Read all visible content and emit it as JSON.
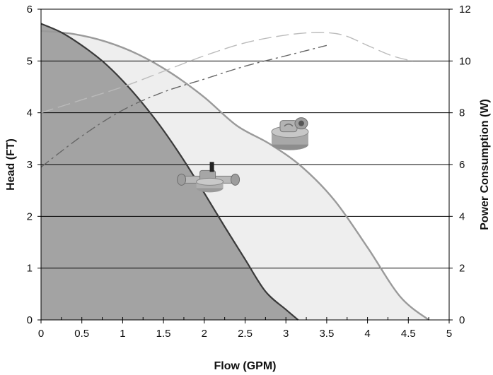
{
  "chart_data": {
    "type": "area",
    "xlabel": "Flow (GPM)",
    "ylabel": "Head (FT)",
    "y2label": "Power Consumption (W)",
    "xlim": [
      0,
      5
    ],
    "ylim": [
      0,
      6
    ],
    "y2lim": [
      0,
      12
    ],
    "x_ticks": [
      "0",
      "0.5",
      "1",
      "1.5",
      "2",
      "2.5",
      "3",
      "3.5",
      "4",
      "4.5",
      "5"
    ],
    "y_ticks": [
      "0",
      "1",
      "2",
      "3",
      "4",
      "5",
      "6"
    ],
    "y2_ticks": [
      "0",
      "2",
      "4",
      "6",
      "8",
      "10",
      "12"
    ],
    "grid": "horizontal",
    "legend": "none",
    "series": [
      {
        "axis": "left",
        "style": "filled-solid",
        "color": "#a9a9a9",
        "fill": "#a3a3a3",
        "x": [
          0,
          0.25,
          0.5,
          0.75,
          1.0,
          1.25,
          1.5,
          1.75,
          2.0,
          2.25,
          2.5,
          2.75,
          3.0,
          3.15
        ],
        "y": [
          5.72,
          5.55,
          5.3,
          5.0,
          4.62,
          4.17,
          3.66,
          3.08,
          2.45,
          1.8,
          1.17,
          0.55,
          0.2,
          0.0
        ]
      },
      {
        "axis": "left",
        "style": "filled-solid",
        "color": "#a9a9a9",
        "fill": "#eeeeee",
        "x": [
          0,
          0.4,
          0.8,
          1.2,
          1.6,
          2.0,
          2.4,
          2.8,
          3.2,
          3.6,
          4.0,
          4.4,
          4.75
        ],
        "y": [
          5.58,
          5.52,
          5.37,
          5.12,
          4.76,
          4.3,
          3.75,
          3.4,
          2.95,
          2.3,
          1.4,
          0.45,
          0.0
        ]
      },
      {
        "axis": "right",
        "style": "dashed",
        "color": "#bbbbbb",
        "x": [
          0,
          0.5,
          1.0,
          1.5,
          2.0,
          2.5,
          3.0,
          3.4,
          3.7,
          4.0,
          4.3,
          4.55
        ],
        "y": [
          8.0,
          8.5,
          9.0,
          9.6,
          10.2,
          10.7,
          11.0,
          11.1,
          11.0,
          10.6,
          10.2,
          10.0
        ]
      },
      {
        "axis": "right",
        "style": "dashed",
        "color": "#666666",
        "x": [
          0,
          0.5,
          1.0,
          1.5,
          2.0,
          2.5,
          3.0,
          3.5
        ],
        "y": [
          5.9,
          7.1,
          8.1,
          8.8,
          9.3,
          9.8,
          10.2,
          10.6
        ]
      }
    ],
    "images": [
      {
        "name": "large-pump-body-image",
        "x": 3.05,
        "y": 3.55
      },
      {
        "name": "small-pump-body-image",
        "x": 2.05,
        "y": 2.45
      }
    ]
  }
}
